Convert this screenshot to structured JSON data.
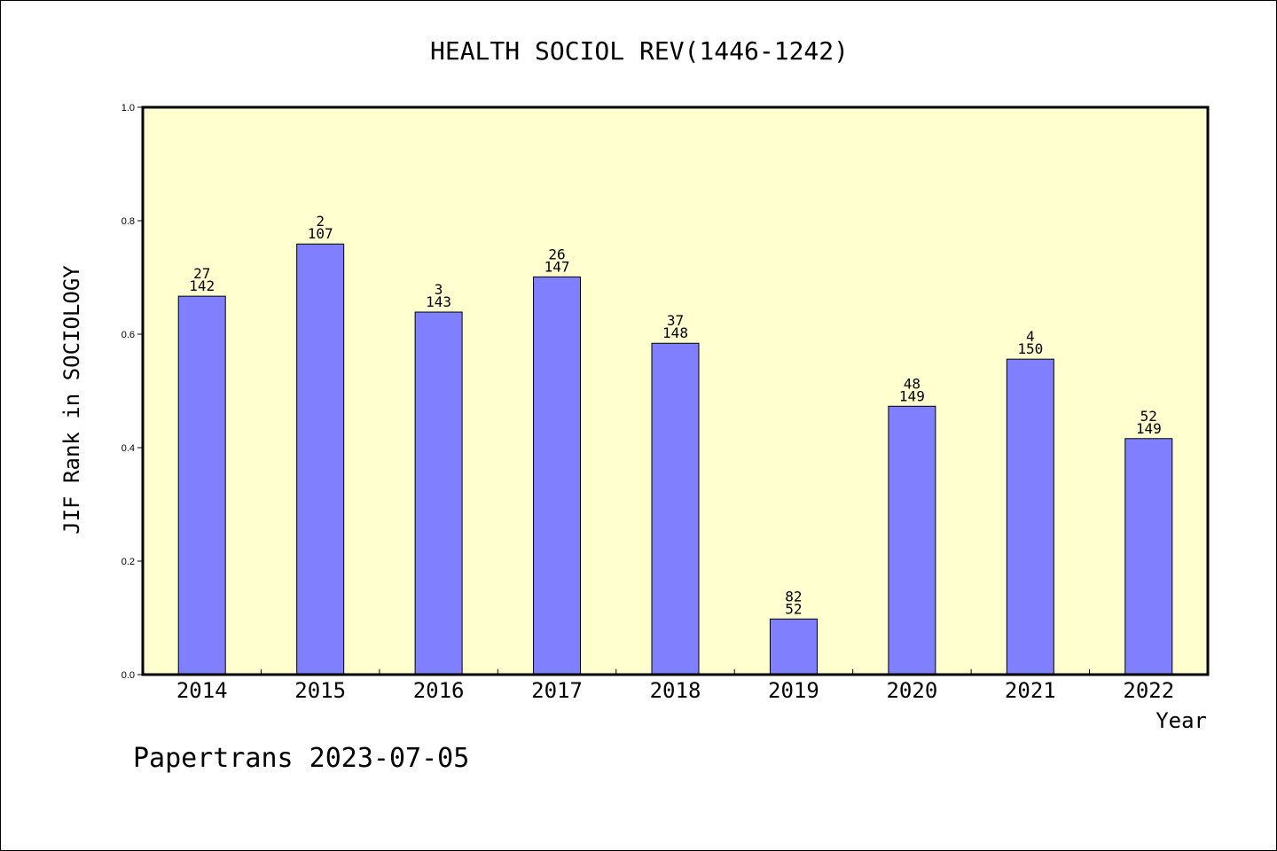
{
  "chart_data": {
    "type": "bar",
    "title": "HEALTH SOCIOL REV(1446-1242)",
    "xlabel": "Year",
    "ylabel": "JIF Rank in SOCIOLOGY",
    "footer": "Papertrans 2023-07-05",
    "ylim": [
      0.0,
      1.0
    ],
    "yticks": [
      "0.0",
      "0.2",
      "0.4",
      "0.6",
      "0.8",
      "1.0"
    ],
    "grid": false,
    "categories": [
      "2014",
      "2015",
      "2016",
      "2017",
      "2018",
      "2019",
      "2020",
      "2021",
      "2022"
    ],
    "values": [
      0.667,
      0.759,
      0.639,
      0.701,
      0.584,
      0.098,
      0.473,
      0.556,
      0.416
    ],
    "labels_top": [
      "27",
      "2",
      "3",
      "26",
      "37",
      "82",
      "48",
      "4",
      "52"
    ],
    "labels_bottom": [
      "142",
      "107",
      "143",
      "147",
      "148",
      "52",
      "149",
      "150",
      "149"
    ],
    "colors": {
      "plot_background": "#ffffd0",
      "bar_fill": "#8080ff",
      "bar_stroke": "#000000",
      "axis": "#000000"
    }
  }
}
